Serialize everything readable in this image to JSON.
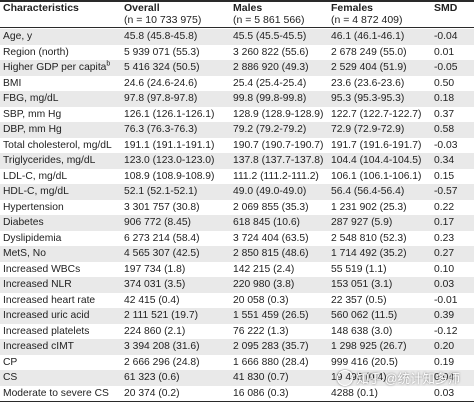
{
  "header": {
    "col0": "Characteristics",
    "col1": "Overall",
    "col2": "Males",
    "col3": "Females",
    "col4": "SMD",
    "col1_n": "(n = 10 733 975)",
    "col2_n": "(n = 5 861 566)",
    "col3_n": "(n = 4 872 409)"
  },
  "rows": [
    {
      "label": "Age, y",
      "sup": "",
      "overall": "45.8 (45.8-45.8)",
      "males": "45.5 (45.5-45.5)",
      "females": "46.1 (46.1-46.1)",
      "smd": "-0.04"
    },
    {
      "label": "Region (north)",
      "sup": "",
      "overall": "5 939 071 (55.3)",
      "males": "3 260 822 (55.6)",
      "females": "2 678 249 (55.0)",
      "smd": "0.01"
    },
    {
      "label": "Higher GDP per capita",
      "sup": "b",
      "overall": "5 416 324 (50.5)",
      "males": "2 886 920 (49.3)",
      "females": "2 529 404 (51.9)",
      "smd": "-0.05"
    },
    {
      "label": "BMI",
      "sup": "",
      "overall": "24.6 (24.6-24.6)",
      "males": "25.4 (25.4-25.4)",
      "females": "23.6 (23.6-23.6)",
      "smd": "0.50"
    },
    {
      "label": "FBG, mg/dL",
      "sup": "",
      "overall": "97.8 (97.8-97.8)",
      "males": "99.8 (99.8-99.8)",
      "females": "95.3 (95.3-95.3)",
      "smd": "0.18"
    },
    {
      "label": "SBP, mm Hg",
      "sup": "",
      "overall": "126.1 (126.1-126.1)",
      "males": "128.9 (128.9-128.9)",
      "females": "122.7 (122.7-122.7)",
      "smd": "0.37"
    },
    {
      "label": "DBP, mm Hg",
      "sup": "",
      "overall": "76.3 (76.3-76.3)",
      "males": "79.2 (79.2-79.2)",
      "females": "72.9 (72.9-72.9)",
      "smd": "0.58"
    },
    {
      "label": "Total cholesterol, mg/dL",
      "sup": "",
      "overall": "191.1 (191.1-191.1)",
      "males": "190.7 (190.7-190.7)",
      "females": "191.7 (191.6-191.7)",
      "smd": "-0.03"
    },
    {
      "label": "Triglycerides, mg/dL",
      "sup": "",
      "overall": "123.0 (123.0-123.0)",
      "males": "137.8 (137.7-137.8)",
      "females": "104.4 (104.4-104.5)",
      "smd": "0.34"
    },
    {
      "label": "LDL-C, mg/dL",
      "sup": "",
      "overall": "108.9 (108.9-108.9)",
      "males": "111.2 (111.2-111.2)",
      "females": "106.1 (106.1-106.1)",
      "smd": "0.15"
    },
    {
      "label": "HDL-C, mg/dL",
      "sup": "",
      "overall": "52.1 (52.1-52.1)",
      "males": "49.0 (49.0-49.0)",
      "females": "56.4 (56.4-56.4)",
      "smd": "-0.57"
    },
    {
      "label": "Hypertension",
      "sup": "",
      "overall": "3 301 757 (30.8)",
      "males": "2 069 855 (35.3)",
      "females": "1 231 902 (25.3)",
      "smd": "0.22"
    },
    {
      "label": "Diabetes",
      "sup": "",
      "overall": "906 772 (8.45)",
      "males": "618 845 (10.6)",
      "females": "287 927 (5.9)",
      "smd": "0.17"
    },
    {
      "label": "Dyslipidemia",
      "sup": "",
      "overall": "6 273 214 (58.4)",
      "males": "3 724 404 (63.5)",
      "females": "2 548 810 (52.3)",
      "smd": "0.23"
    },
    {
      "label": "MetS, No",
      "sup": "",
      "overall": "4 565 307 (42.5)",
      "males": "2 850 815 (48.6)",
      "females": "1 714 492 (35.2)",
      "smd": "0.27"
    },
    {
      "label": "Increased WBCs",
      "sup": "",
      "overall": "197 734 (1.8)",
      "males": "142 215 (2.4)",
      "females": "55 519 (1.1)",
      "smd": "0.10"
    },
    {
      "label": "Increased NLR",
      "sup": "",
      "overall": "374 031 (3.5)",
      "males": "220 980 (3.8)",
      "females": "153 051 (3.1)",
      "smd": "0.03"
    },
    {
      "label": "Increased heart rate",
      "sup": "",
      "overall": "42 415 (0.4)",
      "males": "20 058 (0.3)",
      "females": "22 357 (0.5)",
      "smd": "-0.01"
    },
    {
      "label": "Increased uric acid",
      "sup": "",
      "overall": "2 111 521 (19.7)",
      "males": "1 551 459 (26.5)",
      "females": "560 062 (11.5)",
      "smd": "0.39"
    },
    {
      "label": "Increased platelets",
      "sup": "",
      "overall": "224 860 (2.1)",
      "males": "76 222 (1.3)",
      "females": "148 638 (3.0)",
      "smd": "-0.12"
    },
    {
      "label": "Increased cIMT",
      "sup": "",
      "overall": "3 394 208 (31.6)",
      "males": "2 095 283 (35.7)",
      "females": "1 298 925 (26.7)",
      "smd": "0.20"
    },
    {
      "label": "CP",
      "sup": "",
      "overall": "2 666 296 (24.8)",
      "males": "1 666 880 (28.4)",
      "females": "999 416 (20.5)",
      "smd": "0.19"
    },
    {
      "label": "CS",
      "sup": "",
      "overall": "61 323 (0.6)",
      "males": "41 830 (0.7)",
      "females": "19 493 (0.4)",
      "smd": "0.04"
    },
    {
      "label": "Moderate to severe CS",
      "sup": "",
      "overall": "20 374 (0.2)",
      "males": "16 086 (0.3)",
      "females": "4288 (0.1)",
      "smd": "0.03"
    }
  ],
  "watermark": "知乎 @统计知多师",
  "colors": {
    "row_shade": "#e9e9e9",
    "rule": "#2a2a2a",
    "text": "#222222"
  }
}
